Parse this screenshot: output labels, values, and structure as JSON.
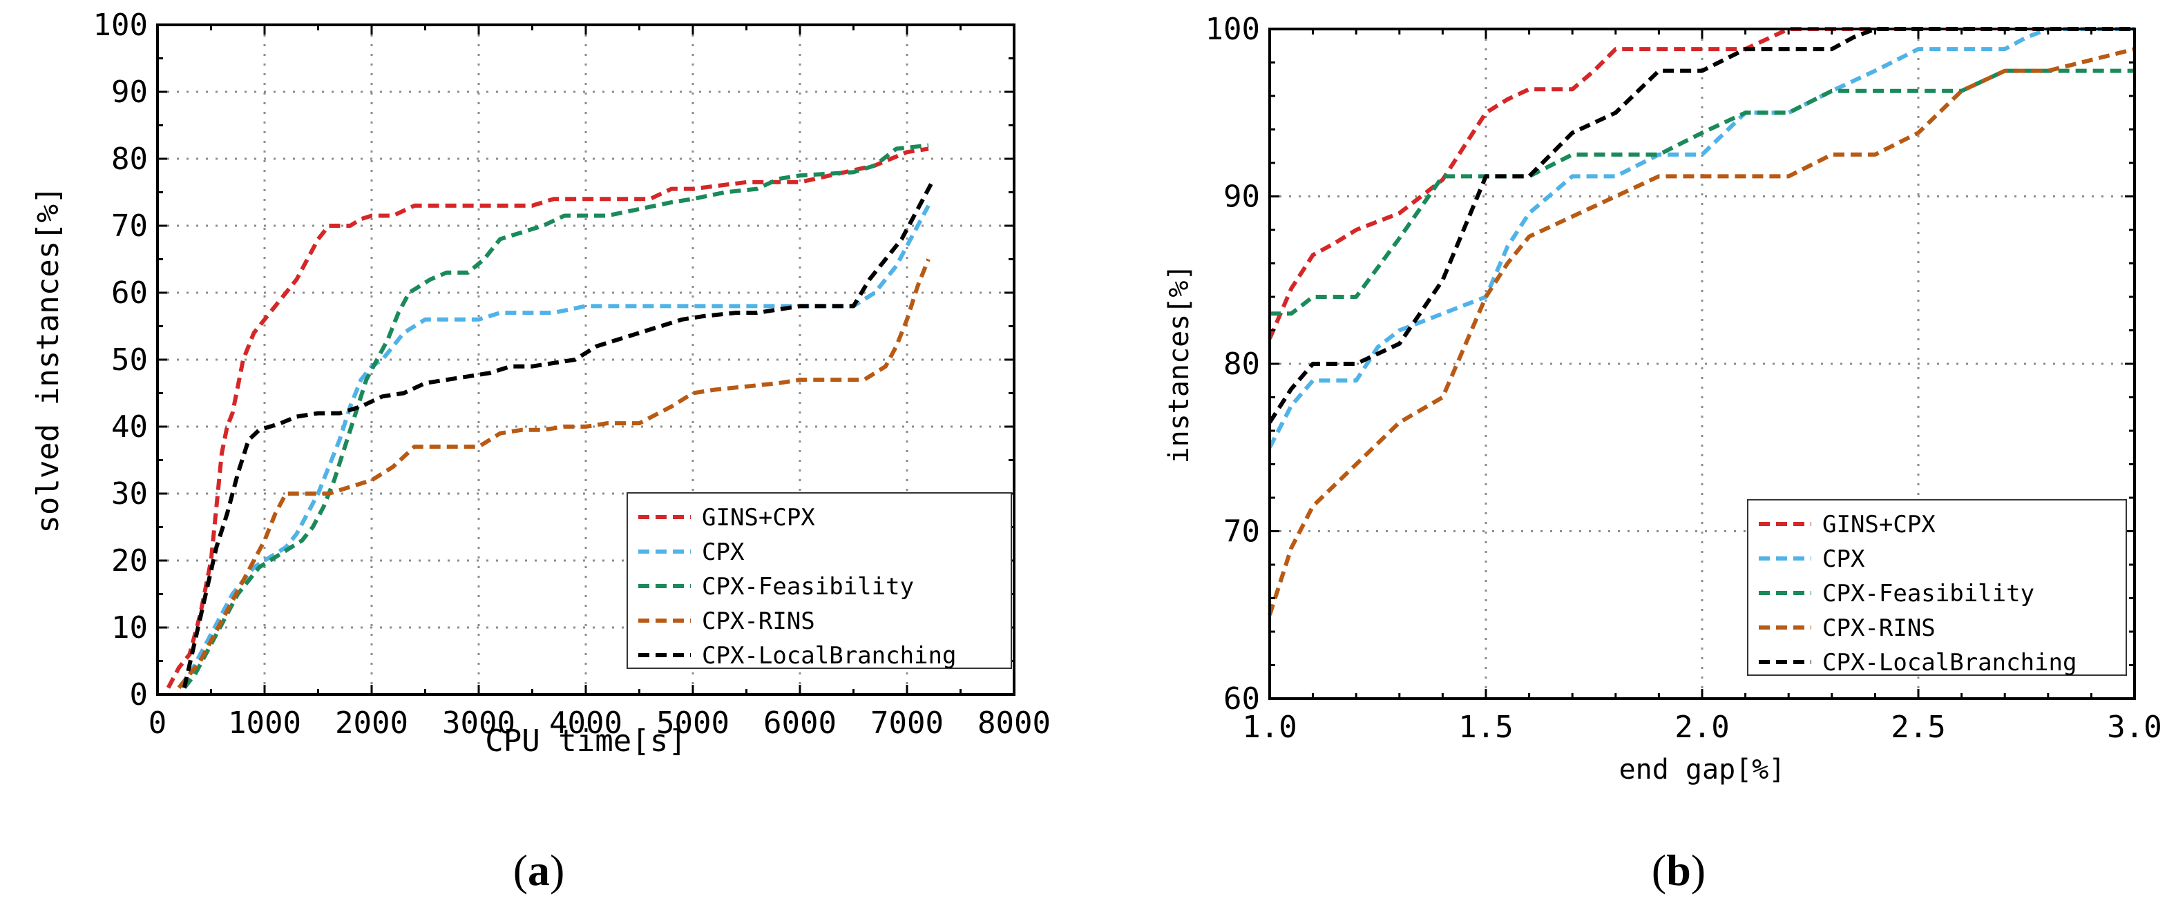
{
  "chart_data": [
    {
      "type": "line",
      "panel_label": "a",
      "xlabel": "CPU time[s]",
      "ylabel": "solved instances[%]",
      "xlim": [
        0,
        8000
      ],
      "ylim": [
        0,
        100
      ],
      "xticks": [
        0,
        1000,
        2000,
        3000,
        4000,
        5000,
        6000,
        7000,
        8000
      ],
      "yticks": [
        0,
        10,
        20,
        30,
        40,
        50,
        60,
        70,
        80,
        90,
        100
      ],
      "grid": true,
      "legend_position": "bottom-right",
      "series": [
        {
          "name": "GINS+CPX",
          "color": "#d62728",
          "x": [
            100,
            200,
            300,
            400,
            500,
            550,
            600,
            650,
            700,
            750,
            800,
            850,
            900,
            1000,
            1100,
            1200,
            1300,
            1400,
            1500,
            1600,
            1700,
            1800,
            1900,
            2000,
            2200,
            2400,
            2600,
            3000,
            3500,
            3700,
            4000,
            4600,
            4800,
            5000,
            5500,
            6000,
            6700,
            7000,
            7200
          ],
          "y": [
            1,
            4,
            6,
            12,
            20,
            28,
            36,
            40,
            42,
            46,
            50,
            52,
            54,
            56,
            58,
            60,
            62,
            65,
            68,
            70,
            70,
            70,
            71,
            71.5,
            71.5,
            73,
            73,
            73,
            73,
            74,
            74,
            74,
            75.5,
            75.5,
            76.5,
            76.5,
            79,
            81,
            81.5
          ]
        },
        {
          "name": "CPX",
          "color": "#4fb3e8",
          "x": [
            200,
            300,
            400,
            500,
            600,
            700,
            800,
            900,
            1000,
            1100,
            1200,
            1300,
            1400,
            1500,
            1600,
            1700,
            1800,
            1900,
            2000,
            2100,
            2200,
            2300,
            2500,
            2800,
            3000,
            3200,
            3400,
            3700,
            4000,
            4500,
            5000,
            5500,
            6000,
            6500,
            6700,
            6900,
            7000,
            7100,
            7200
          ],
          "y": [
            1,
            3,
            6,
            9,
            12,
            15,
            17,
            19,
            20,
            21,
            22,
            24,
            27,
            30,
            34,
            38,
            43,
            47,
            49,
            50,
            52,
            54,
            56,
            56,
            56,
            57,
            57,
            57,
            58,
            58,
            58,
            58,
            58,
            58,
            60,
            64,
            67,
            70,
            73
          ]
        },
        {
          "name": "CPX-Feasibility",
          "color": "#1a8a5a",
          "x": [
            250,
            350,
            450,
            550,
            650,
            750,
            850,
            950,
            1050,
            1150,
            1250,
            1350,
            1450,
            1550,
            1650,
            1750,
            1850,
            1950,
            2050,
            2150,
            2250,
            2350,
            2450,
            2550,
            2700,
            2900,
            3050,
            3200,
            3400,
            3600,
            3800,
            4000,
            4200,
            4500,
            4800,
            5000,
            5300,
            5600,
            5800,
            6000,
            6500,
            6700,
            6900,
            7200
          ],
          "y": [
            1,
            3,
            6,
            9,
            12,
            15,
            17,
            19,
            20,
            21,
            22,
            23,
            25,
            28,
            32,
            37,
            42,
            47,
            50,
            53,
            57,
            60,
            61,
            62,
            63,
            63,
            65,
            68,
            69,
            70,
            71.5,
            71.5,
            71.5,
            72.5,
            73.5,
            74,
            75,
            75.5,
            77,
            77.5,
            78,
            79,
            81.5,
            82
          ]
        },
        {
          "name": "CPX-RINS",
          "color": "#b85a14",
          "x": [
            200,
            300,
            400,
            500,
            600,
            700,
            800,
            900,
            1000,
            1100,
            1200,
            1400,
            1600,
            1800,
            2000,
            2200,
            2400,
            2600,
            2800,
            3000,
            3200,
            3400,
            3600,
            3800,
            4000,
            4200,
            4500,
            4800,
            5000,
            5200,
            5500,
            5800,
            6000,
            6400,
            6600,
            6800,
            6900,
            7000,
            7100,
            7200
          ],
          "y": [
            1,
            3,
            5,
            8,
            11,
            14,
            17,
            20,
            23,
            27,
            30,
            30,
            30,
            31,
            32,
            34,
            37,
            37,
            37,
            37,
            39,
            39.5,
            39.5,
            40,
            40,
            40.5,
            40.5,
            43,
            45,
            45.5,
            46,
            46.5,
            47,
            47,
            47,
            49,
            52,
            56,
            61,
            65
          ]
        },
        {
          "name": "CPX-LocalBranching",
          "color": "#000000",
          "x": [
            250,
            350,
            450,
            550,
            650,
            750,
            850,
            950,
            1050,
            1150,
            1300,
            1500,
            1700,
            1900,
            2100,
            2300,
            2500,
            2700,
            2900,
            3100,
            3300,
            3500,
            3700,
            3900,
            4100,
            4300,
            4500,
            4700,
            4900,
            5100,
            5400,
            5600,
            5800,
            6000,
            6300,
            6500,
            6650,
            6800,
            6950,
            7050,
            7150,
            7250
          ],
          "y": [
            1,
            8,
            15,
            22,
            27,
            33,
            38,
            39.5,
            40,
            40.5,
            41.5,
            42,
            42,
            43,
            44.5,
            45,
            46.5,
            47,
            47.5,
            48,
            49,
            49,
            49.5,
            50,
            52,
            53,
            54,
            55,
            56,
            56.5,
            57,
            57,
            57.5,
            58,
            58,
            58,
            62,
            65,
            68,
            71,
            74,
            77
          ]
        }
      ]
    },
    {
      "type": "line",
      "panel_label": "b",
      "xlabel": "end gap[%]",
      "ylabel": "instances[%]",
      "xlim": [
        1.0,
        3.0
      ],
      "ylim": [
        60,
        100
      ],
      "xticks": [
        1.0,
        1.5,
        2.0,
        2.5,
        3.0
      ],
      "xtick_labels": [
        "1.0",
        "1.5",
        "2.0",
        "2.5",
        "3.0"
      ],
      "yticks": [
        60,
        70,
        80,
        90,
        100
      ],
      "grid": true,
      "legend_position": "bottom-right",
      "series": [
        {
          "name": "GINS+CPX",
          "color": "#d62728",
          "x": [
            1.0,
            1.05,
            1.1,
            1.15,
            1.2,
            1.3,
            1.4,
            1.45,
            1.5,
            1.55,
            1.6,
            1.7,
            1.75,
            1.8,
            1.9,
            2.0,
            2.1,
            2.2,
            2.3,
            2.5,
            3.0
          ],
          "y": [
            81.5,
            84.5,
            86.5,
            87.2,
            88,
            89,
            91,
            93,
            95,
            95.8,
            96.4,
            96.4,
            97.5,
            98.8,
            98.8,
            98.8,
            98.8,
            100,
            100,
            100,
            100
          ]
        },
        {
          "name": "CPX",
          "color": "#4fb3e8",
          "x": [
            1.0,
            1.05,
            1.1,
            1.2,
            1.25,
            1.3,
            1.4,
            1.5,
            1.55,
            1.6,
            1.7,
            1.8,
            1.9,
            2.0,
            2.1,
            2.2,
            2.3,
            2.4,
            2.5,
            2.6,
            2.7,
            2.75,
            2.8,
            3.0
          ],
          "y": [
            75,
            77.5,
            79,
            79,
            81,
            82,
            83,
            84,
            87,
            89,
            91.2,
            91.2,
            92.5,
            92.5,
            95,
            95,
            96.3,
            97.5,
            98.8,
            98.8,
            98.8,
            99.5,
            100,
            100
          ]
        },
        {
          "name": "CPX-Feasibility",
          "color": "#1a8a5a",
          "x": [
            1.0,
            1.05,
            1.1,
            1.2,
            1.3,
            1.4,
            1.5,
            1.6,
            1.7,
            1.8,
            1.9,
            2.0,
            2.1,
            2.2,
            2.3,
            2.4,
            2.5,
            2.6,
            2.7,
            2.8,
            3.0
          ],
          "y": [
            83,
            83,
            84,
            84,
            87.5,
            91.2,
            91.2,
            91.2,
            92.5,
            92.5,
            92.5,
            93.8,
            95,
            95,
            96.3,
            96.3,
            96.3,
            96.3,
            97.5,
            97.5,
            97.5
          ]
        },
        {
          "name": "CPX-RINS",
          "color": "#b85a14",
          "x": [
            1.0,
            1.05,
            1.1,
            1.2,
            1.3,
            1.4,
            1.45,
            1.5,
            1.55,
            1.6,
            1.7,
            1.8,
            1.9,
            2.0,
            2.1,
            2.2,
            2.3,
            2.4,
            2.5,
            2.6,
            2.7,
            2.8,
            3.0
          ],
          "y": [
            65,
            69,
            71.5,
            74,
            76.5,
            78,
            81,
            84,
            86,
            87.6,
            88.8,
            90,
            91.2,
            91.2,
            91.2,
            91.2,
            92.5,
            92.5,
            93.8,
            96.3,
            97.5,
            97.5,
            98.8
          ]
        },
        {
          "name": "CPX-LocalBranching",
          "color": "#000000",
          "x": [
            1.0,
            1.05,
            1.1,
            1.2,
            1.3,
            1.4,
            1.5,
            1.55,
            1.6,
            1.7,
            1.8,
            1.9,
            2.0,
            2.1,
            2.2,
            2.3,
            2.35,
            2.4,
            3.0
          ],
          "y": [
            76.5,
            78.5,
            80,
            80,
            81.2,
            85,
            91.2,
            91.2,
            91.2,
            93.8,
            95,
            97.5,
            97.5,
            98.8,
            98.8,
            98.8,
            99.5,
            100,
            100
          ]
        }
      ]
    }
  ]
}
